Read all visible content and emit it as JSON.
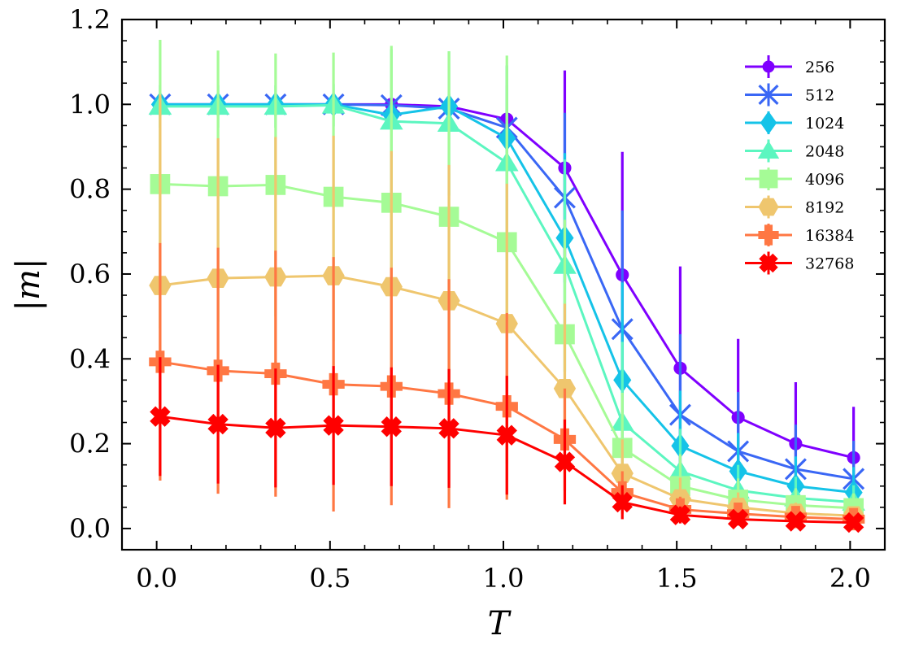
{
  "chart_data": {
    "type": "line",
    "xlabel": "T",
    "ylabel": "|m|",
    "xlim": [
      -0.1,
      2.1
    ],
    "ylim": [
      -0.05,
      1.2
    ],
    "xticks": [
      0.0,
      0.5,
      1.0,
      1.5,
      2.0
    ],
    "xtick_labels": [
      "0.0",
      "0.5",
      "1.0",
      "1.5",
      "2.0"
    ],
    "yticks": [
      0.0,
      0.2,
      0.4,
      0.6,
      0.8,
      1.0,
      1.2
    ],
    "ytick_labels": [
      "0.0",
      "0.2",
      "0.4",
      "0.6",
      "0.8",
      "1.0",
      "1.2"
    ],
    "legend_position": "top-right",
    "x": [
      0.01,
      0.177,
      0.343,
      0.51,
      0.677,
      0.843,
      1.01,
      1.177,
      1.343,
      1.51,
      1.677,
      1.843,
      2.01
    ],
    "series": [
      {
        "name": "256",
        "color": "#7f00ff",
        "marker": "circle",
        "values": [
          1.0,
          1.0,
          1.0,
          1.0,
          1.0,
          0.995,
          0.965,
          0.85,
          0.598,
          0.378,
          0.262,
          0.2,
          0.167
        ],
        "errors": [
          0.01,
          0.01,
          0.01,
          0.01,
          0.01,
          0.02,
          0.06,
          0.23,
          0.29,
          0.24,
          0.185,
          0.145,
          0.12
        ]
      },
      {
        "name": "512",
        "color": "#3a67f5",
        "marker": "x",
        "values": [
          1.0,
          1.0,
          1.0,
          1.0,
          0.998,
          0.99,
          0.945,
          0.78,
          0.47,
          0.268,
          0.182,
          0.14,
          0.117
        ],
        "errors": [
          0.01,
          0.01,
          0.01,
          0.01,
          0.01,
          0.03,
          0.1,
          0.2,
          0.28,
          0.19,
          0.14,
          0.105,
          0.09
        ]
      },
      {
        "name": "1024",
        "color": "#15c3e8",
        "marker": "diamond",
        "values": [
          1.0,
          1.0,
          1.0,
          1.0,
          0.975,
          0.995,
          0.92,
          0.685,
          0.35,
          0.195,
          0.135,
          0.1,
          0.085
        ],
        "errors": [
          0.02,
          0.02,
          0.02,
          0.02,
          0.03,
          0.03,
          0.17,
          0.2,
          0.23,
          0.13,
          0.09,
          0.07,
          0.06
        ]
      },
      {
        "name": "2048",
        "color": "#5cf6c0",
        "marker": "triangle",
        "values": [
          0.995,
          0.995,
          0.995,
          0.998,
          0.96,
          0.955,
          0.862,
          0.62,
          0.25,
          0.135,
          0.09,
          0.072,
          0.062
        ],
        "errors": [
          0.05,
          0.05,
          0.05,
          0.05,
          0.17,
          0.17,
          0.23,
          0.25,
          0.19,
          0.1,
          0.06,
          0.05,
          0.04
        ]
      },
      {
        "name": "4096",
        "color": "#a5fb96",
        "marker": "square",
        "values": [
          0.812,
          0.807,
          0.81,
          0.782,
          0.768,
          0.735,
          0.675,
          0.458,
          0.19,
          0.1,
          0.068,
          0.055,
          0.048
        ],
        "errors": [
          0.34,
          0.32,
          0.31,
          0.34,
          0.37,
          0.39,
          0.44,
          0.27,
          0.13,
          0.075,
          0.05,
          0.04,
          0.035
        ]
      },
      {
        "name": "8192",
        "color": "#efc66e",
        "marker": "hexagon",
        "values": [
          0.573,
          0.59,
          0.593,
          0.596,
          0.57,
          0.537,
          0.483,
          0.33,
          0.13,
          0.07,
          0.05,
          0.036,
          0.03
        ],
        "errors": [
          0.45,
          0.33,
          0.33,
          0.33,
          0.32,
          0.32,
          0.33,
          0.2,
          0.08,
          0.05,
          0.035,
          0.025,
          0.02
        ]
      },
      {
        "name": "16384",
        "color": "#ff7743",
        "marker": "plus",
        "values": [
          0.393,
          0.372,
          0.365,
          0.34,
          0.335,
          0.318,
          0.288,
          0.21,
          0.085,
          0.045,
          0.035,
          0.027,
          0.022
        ],
        "errors": [
          0.28,
          0.29,
          0.29,
          0.3,
          0.28,
          0.27,
          0.22,
          0.12,
          0.05,
          0.03,
          0.02,
          0.015,
          0.012
        ]
      },
      {
        "name": "32768",
        "color": "#ff0000",
        "marker": "xfilled",
        "values": [
          0.264,
          0.246,
          0.237,
          0.243,
          0.24,
          0.236,
          0.22,
          0.157,
          0.062,
          0.032,
          0.022,
          0.017,
          0.014
        ],
        "errors": [
          0.14,
          0.14,
          0.14,
          0.14,
          0.14,
          0.14,
          0.14,
          0.1,
          0.04,
          0.02,
          0.015,
          0.01,
          0.008
        ]
      }
    ]
  }
}
